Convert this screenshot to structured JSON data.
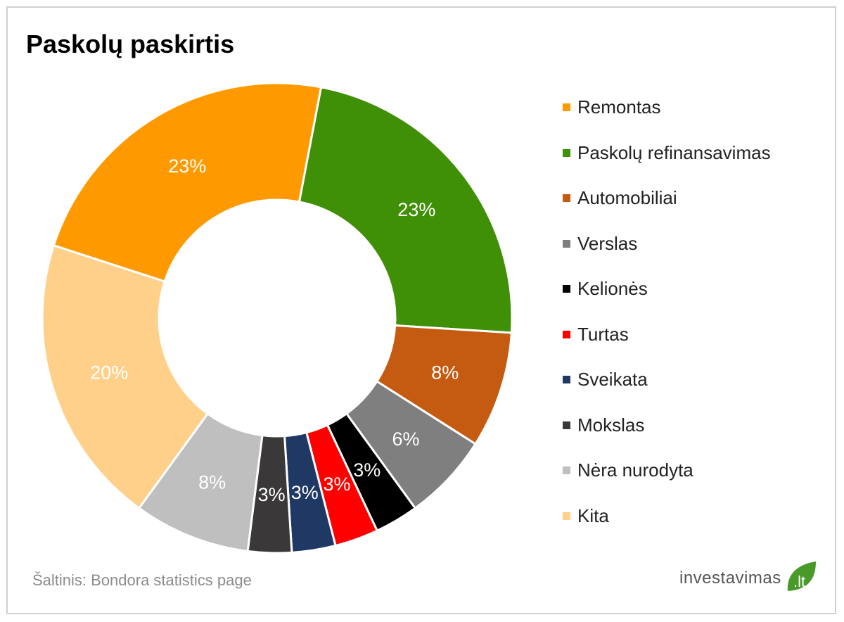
{
  "chart_data": {
    "type": "pie",
    "variant": "donut",
    "title": "Paskolų paskirtis",
    "legend_position": "right",
    "categories": [
      "Remontas",
      "Paskolų refinansavimas",
      "Automobiliai",
      "Verslas",
      "Kelionės",
      "Turtas",
      "Sveikata",
      "Mokslas",
      "Nėra nurodyta",
      "Kita"
    ],
    "values": [
      23,
      23,
      8,
      6,
      3,
      3,
      3,
      3,
      8,
      20
    ],
    "labels": [
      "23%",
      "23%",
      "8%",
      "6%",
      "3%",
      "3%",
      "3%",
      "3%",
      "8%",
      "20%"
    ],
    "colors": [
      "#ff9900",
      "#3f8f07",
      "#c55a11",
      "#7f7f7f",
      "#000000",
      "#ff0000",
      "#1f3864",
      "#3a3838",
      "#bfbfbf",
      "#ffd08a"
    ]
  },
  "source": "Šaltinis: Bondora  statistics page",
  "logo": {
    "text": "investavimas",
    "tld": ".lt"
  }
}
